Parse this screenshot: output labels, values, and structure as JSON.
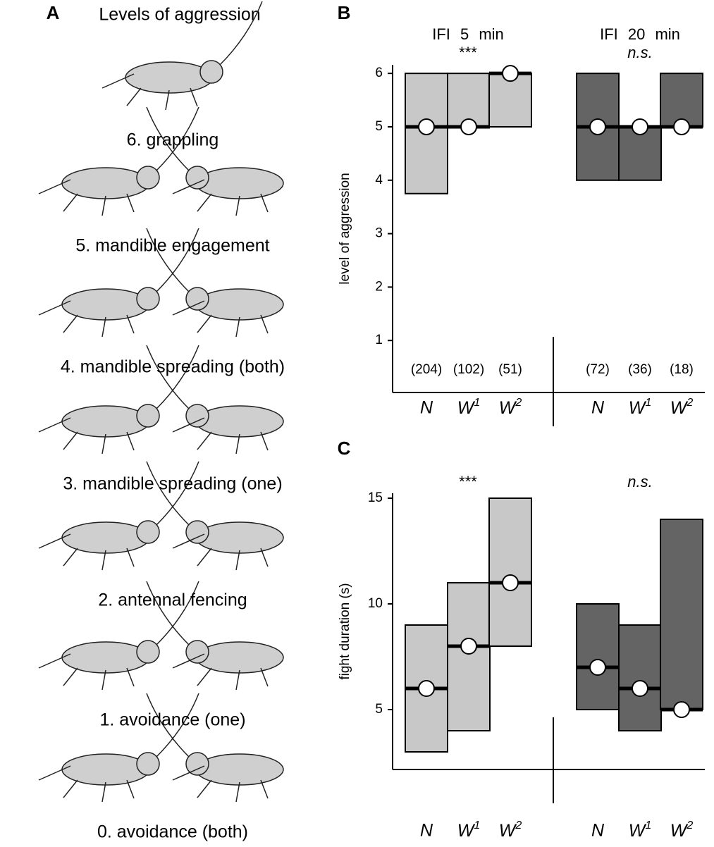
{
  "panel_a": {
    "panel_label": "A",
    "title": "Levels of aggression",
    "levels": [
      "6. grappling",
      "5. mandible engagement",
      "4. mandible spreading (both)",
      "3. mandible spreading (one)",
      "2. antennal fencing",
      "1. avoidance (one)",
      "0. avoidance (both)"
    ]
  },
  "chart_data": [
    {
      "type": "box",
      "panel_label": "B",
      "y_label": "level of aggression",
      "ylim": [
        0,
        6.2
      ],
      "yticks": [
        1,
        2,
        3,
        4,
        5,
        6
      ],
      "groups": [
        {
          "header": "IFI 5 min",
          "significance": "***",
          "color": "#c8c8c8",
          "categories": [
            "N",
            "W1",
            "W2"
          ],
          "q1": [
            3.75,
            5,
            5
          ],
          "q3": [
            6,
            6,
            6
          ],
          "medians": [
            5,
            5,
            6
          ],
          "sample_size_labels": [
            "(204)",
            "(102)",
            "(51)"
          ]
        },
        {
          "header": "IFI 20 min",
          "significance": "n.s.",
          "color": "#646464",
          "categories": [
            "N",
            "W1",
            "W2"
          ],
          "q1": [
            4,
            4,
            5
          ],
          "q3": [
            6,
            5,
            6
          ],
          "medians": [
            5,
            5,
            5
          ],
          "sample_size_labels": [
            "(72)",
            "(36)",
            "(18)"
          ]
        }
      ]
    },
    {
      "type": "box",
      "panel_label": "C",
      "y_label": "fight duration (s)",
      "ylim": [
        2,
        15.5
      ],
      "yticks": [
        5,
        10,
        15
      ],
      "groups": [
        {
          "significance": "***",
          "color": "#c8c8c8",
          "categories": [
            "N",
            "W1",
            "W2"
          ],
          "q1": [
            3,
            4,
            8
          ],
          "q3": [
            9,
            11,
            15
          ],
          "medians": [
            6,
            8,
            11
          ]
        },
        {
          "significance": "n.s.",
          "color": "#646464",
          "categories": [
            "N",
            "W1",
            "W2"
          ],
          "q1": [
            5,
            4,
            5
          ],
          "q3": [
            10,
            9,
            14
          ],
          "medians": [
            7,
            6,
            5
          ]
        }
      ]
    }
  ]
}
